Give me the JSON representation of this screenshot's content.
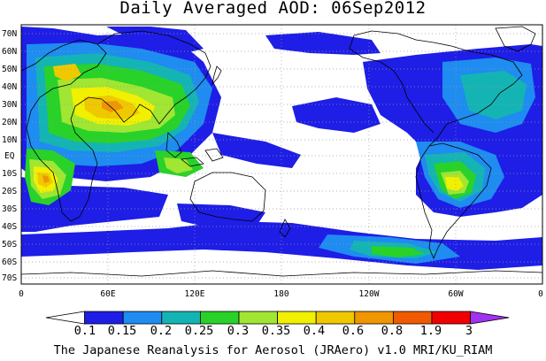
{
  "title": "Daily Averaged AOD: 06Sep2012",
  "footer": "The Japanese Reanalysis for Aerosol (JRAero) v1.0 MRI/KU_RIAM",
  "map": {
    "lat_labels": [
      "70N",
      "60N",
      "50N",
      "40N",
      "30N",
      "20N",
      "10N",
      "EQ",
      "10S",
      "20S",
      "30S",
      "40S",
      "50S",
      "60S",
      "70S"
    ],
    "lon_labels": [
      "0",
      "60E",
      "120E",
      "180",
      "120W",
      "60W",
      "0"
    ],
    "colors": {
      "background": "#ffffff",
      "coastline": "#000000",
      "gridline": "#9a9a9a"
    }
  },
  "colorbar": {
    "labels": [
      "0.1",
      "0.15",
      "0.2",
      "0.25",
      "0.3",
      "0.35",
      "0.4",
      "0.6",
      "0.8",
      "1.9",
      "3"
    ],
    "colors": [
      "#ffffff",
      "#1e1ee6",
      "#1e8cf0",
      "#14b4b4",
      "#28d228",
      "#a0e632",
      "#f0f000",
      "#f0c800",
      "#f09600",
      "#f05a00",
      "#f00000",
      "#a032f0"
    ]
  }
}
